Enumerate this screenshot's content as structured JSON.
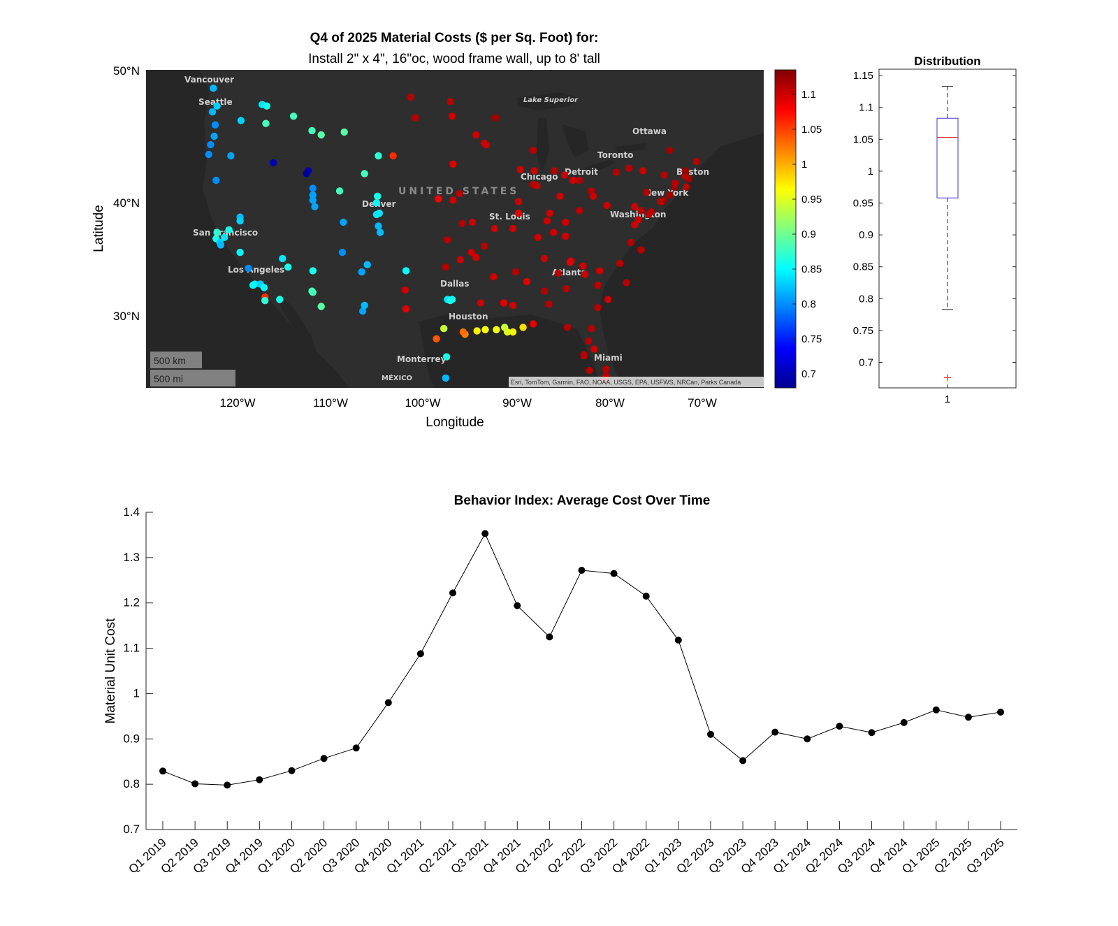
{
  "map_panel": {
    "title": "Q4 of 2025 Material Costs ($ per Sq. Foot) for:",
    "subtitle": "Install 2\" x 4\", 16\"oc, wood frame wall, up to 8' tall",
    "ylabel": "Latitude",
    "xlabel": "Longitude",
    "lat_ticks": [
      "50°N",
      "40°N",
      "30°N"
    ],
    "lon_ticks": [
      "120°W",
      "110°W",
      "100°W",
      "90°W",
      "80°W",
      "70°W"
    ],
    "scale_km": "500 km",
    "scale_mi": "500 mi",
    "attribution": "Esri, TomTom, Garmin, FAO, NOAA, USGS, EPA, USFWS, NRCan, Parks Canada",
    "place_labels": [
      "Vancouver",
      "Seattle",
      "Lake Superior",
      "Ottawa",
      "Toronto",
      "Chicago",
      "Detroit",
      "Boston",
      "New York",
      "Denver",
      "San Francisco",
      "Los Angeles",
      "Washington",
      "St. Louis",
      "Atlanta",
      "Dallas",
      "Houston",
      "Monterrey",
      "Miami",
      "MÉXICO"
    ],
    "country_label": "UNITED STATES"
  },
  "colorbar": {
    "ticks": [
      "1.1",
      "1.05",
      "1",
      "0.95",
      "0.9",
      "0.85",
      "0.8",
      "0.75",
      "0.7"
    ],
    "tick_values": [
      1.1,
      1.05,
      1.0,
      0.95,
      0.9,
      0.85,
      0.8,
      0.75,
      0.7
    ],
    "range": [
      0.68,
      1.135
    ]
  },
  "chart_data": [
    {
      "type": "scatter",
      "title": "Q4 of 2025 Material Costs ($ per Sq. Foot) for:",
      "subtitle": "Install 2\" x 4\", 16\"oc, wood frame wall, up to 8' tall",
      "xlabel": "Longitude",
      "ylabel": "Latitude",
      "xlim": [
        -130,
        -63
      ],
      "ylim": [
        25,
        50
      ],
      "color_range": [
        0.68,
        1.135
      ],
      "points": [
        [
          -122.7,
          48.8,
          0.82
        ],
        [
          -122.3,
          47.6,
          0.83
        ],
        [
          -122.8,
          47.2,
          0.82
        ],
        [
          -122.5,
          46.3,
          0.8
        ],
        [
          -122.6,
          45.5,
          0.81
        ],
        [
          -123.0,
          44.9,
          0.8
        ],
        [
          -123.2,
          44.2,
          0.8
        ],
        [
          -120.8,
          44.1,
          0.81
        ],
        [
          -122.4,
          42.3,
          0.8
        ],
        [
          -117.4,
          47.7,
          0.84
        ],
        [
          -116.9,
          47.6,
          0.86
        ],
        [
          -117.0,
          46.4,
          0.88
        ],
        [
          -114.0,
          46.9,
          0.88
        ],
        [
          -112.0,
          45.9,
          0.88
        ],
        [
          -111.0,
          45.6,
          0.89
        ],
        [
          -108.5,
          45.8,
          0.89
        ],
        [
          -119.7,
          46.6,
          0.83
        ],
        [
          -116.2,
          43.6,
          0.7
        ],
        [
          -112.4,
          43.0,
          0.7
        ],
        [
          -112.6,
          42.8,
          0.69
        ],
        [
          -111.9,
          41.7,
          0.8
        ],
        [
          -111.9,
          41.2,
          0.81
        ],
        [
          -111.9,
          40.8,
          0.81
        ],
        [
          -111.7,
          40.3,
          0.81
        ],
        [
          -109.0,
          41.5,
          0.88
        ],
        [
          -106.3,
          42.8,
          0.88
        ],
        [
          -104.8,
          44.1,
          0.87
        ],
        [
          -104.9,
          41.1,
          0.86
        ],
        [
          -105.0,
          40.6,
          0.85
        ],
        [
          -105.0,
          39.7,
          0.84
        ],
        [
          -104.7,
          39.8,
          0.84
        ],
        [
          -104.8,
          38.8,
          0.82
        ],
        [
          -104.6,
          38.3,
          0.82
        ],
        [
          -108.6,
          39.1,
          0.81
        ],
        [
          -119.8,
          39.5,
          0.82
        ],
        [
          -119.8,
          39.2,
          0.83
        ],
        [
          -122.4,
          37.8,
          0.86
        ],
        [
          -122.0,
          37.5,
          0.83
        ],
        [
          -121.9,
          37.3,
          0.82
        ],
        [
          -121.5,
          37.9,
          0.84
        ],
        [
          -119.8,
          36.7,
          0.85
        ],
        [
          -118.9,
          35.4,
          0.8
        ],
        [
          -121.0,
          38.5,
          0.86
        ],
        [
          -122.3,
          38.3,
          0.87
        ],
        [
          -118.2,
          34.1,
          0.84
        ],
        [
          -118.4,
          34.0,
          0.85
        ],
        [
          -117.6,
          34.1,
          0.83
        ],
        [
          -117.2,
          33.8,
          0.85
        ],
        [
          -117.1,
          33.0,
          1.06
        ],
        [
          -117.1,
          32.7,
          0.87
        ],
        [
          -115.5,
          32.8,
          0.86
        ],
        [
          -112.0,
          33.5,
          0.88
        ],
        [
          -111.9,
          33.4,
          0.88
        ],
        [
          -111.0,
          32.2,
          0.89
        ],
        [
          -111.9,
          35.2,
          0.86
        ],
        [
          -114.6,
          35.5,
          0.86
        ],
        [
          -115.2,
          36.2,
          0.84
        ],
        [
          -106.6,
          35.1,
          0.81
        ],
        [
          -106.0,
          35.7,
          0.82
        ],
        [
          -108.7,
          36.7,
          0.8
        ],
        [
          -106.5,
          31.8,
          0.81
        ],
        [
          -106.3,
          32.3,
          0.82
        ],
        [
          -101.8,
          35.2,
          0.85
        ],
        [
          -97.3,
          32.8,
          0.84
        ],
        [
          -96.8,
          32.8,
          0.85
        ],
        [
          -97.0,
          32.7,
          0.86
        ],
        [
          -98.5,
          29.4,
          1.04
        ],
        [
          -97.7,
          30.3,
          0.94
        ],
        [
          -95.4,
          29.8,
          1.02
        ],
        [
          -95.6,
          30.0,
          1.03
        ],
        [
          -94.1,
          30.1,
          0.97
        ],
        [
          -93.2,
          30.2,
          0.96
        ],
        [
          -92.0,
          30.2,
          0.96
        ],
        [
          -91.1,
          30.4,
          0.94
        ],
        [
          -90.2,
          30.0,
          0.97
        ],
        [
          -89.1,
          30.4,
          0.98
        ],
        [
          -88.0,
          30.7,
          1.09
        ],
        [
          -90.8,
          30.0,
          0.95
        ],
        [
          -97.4,
          27.8,
          0.86
        ],
        [
          -97.5,
          25.9,
          0.82
        ],
        [
          -101.9,
          33.6,
          1.1
        ],
        [
          -101.8,
          32.0,
          1.09
        ],
        [
          -97.5,
          35.5,
          1.11
        ],
        [
          -95.9,
          36.1,
          1.1
        ],
        [
          -97.3,
          37.7,
          1.11
        ],
        [
          -95.7,
          39.0,
          1.11
        ],
        [
          -94.6,
          39.1,
          1.1
        ],
        [
          -96.7,
          40.8,
          1.1
        ],
        [
          -96.0,
          41.3,
          1.11
        ],
        [
          -98.3,
          40.9,
          1.08
        ],
        [
          -100.8,
          46.8,
          1.11
        ],
        [
          -96.8,
          46.9,
          1.1
        ],
        [
          -96.7,
          43.5,
          1.09
        ],
        [
          -103.2,
          44.1,
          1.06
        ],
        [
          -93.3,
          45.0,
          1.1
        ],
        [
          -93.1,
          44.9,
          1.1
        ],
        [
          -92.1,
          46.8,
          1.12
        ],
        [
          -101.3,
          48.2,
          1.11
        ],
        [
          -97.0,
          47.9,
          1.11
        ],
        [
          -94.2,
          45.6,
          1.1
        ],
        [
          -92.3,
          34.7,
          1.1
        ],
        [
          -94.2,
          36.3,
          1.1
        ],
        [
          -93.3,
          37.2,
          1.11
        ],
        [
          -92.2,
          38.6,
          1.1
        ],
        [
          -90.2,
          38.6,
          1.1
        ],
        [
          -89.9,
          35.1,
          1.11
        ],
        [
          -86.8,
          36.2,
          1.1
        ],
        [
          -85.3,
          35.0,
          1.11
        ],
        [
          -83.9,
          36.0,
          1.1
        ],
        [
          -84.4,
          33.7,
          1.11
        ],
        [
          -86.8,
          33.5,
          1.11
        ],
        [
          -86.3,
          32.4,
          1.11
        ],
        [
          -90.2,
          32.3,
          1.1
        ],
        [
          -88.7,
          34.3,
          1.09
        ],
        [
          -84.5,
          38.0,
          1.1
        ],
        [
          -85.8,
          38.3,
          1.1
        ],
        [
          -87.6,
          41.9,
          1.1
        ],
        [
          -88.0,
          42.0,
          1.11
        ],
        [
          -87.9,
          43.0,
          1.1
        ],
        [
          -89.4,
          43.1,
          1.1
        ],
        [
          -88.0,
          44.5,
          1.11
        ],
        [
          -89.6,
          39.8,
          1.09
        ],
        [
          -89.6,
          40.7,
          1.1
        ],
        [
          -86.2,
          39.8,
          1.1
        ],
        [
          -85.1,
          41.1,
          1.1
        ],
        [
          -83.0,
          42.3,
          1.11
        ],
        [
          -83.7,
          42.3,
          1.1
        ],
        [
          -85.7,
          43.0,
          1.11
        ],
        [
          -84.6,
          42.7,
          1.1
        ],
        [
          -84.5,
          39.1,
          1.1
        ],
        [
          -83.0,
          40.0,
          1.11
        ],
        [
          -81.7,
          41.5,
          1.11
        ],
        [
          -81.5,
          41.1,
          1.1
        ],
        [
          -80.0,
          40.4,
          1.1
        ],
        [
          -79.0,
          42.9,
          1.11
        ],
        [
          -77.6,
          43.2,
          1.11
        ],
        [
          -76.1,
          43.0,
          1.1
        ],
        [
          -73.8,
          42.7,
          1.11
        ],
        [
          -82.5,
          27.9,
          1.1
        ],
        [
          -82.5,
          28.0,
          1.11
        ],
        [
          -81.4,
          28.5,
          1.1
        ],
        [
          -81.7,
          30.3,
          1.11
        ],
        [
          -84.3,
          30.4,
          1.11
        ],
        [
          -80.2,
          25.8,
          1.12
        ],
        [
          -80.1,
          26.1,
          1.11
        ],
        [
          -80.1,
          26.7,
          1.11
        ],
        [
          -81.9,
          26.6,
          1.11
        ],
        [
          -82.0,
          29.2,
          1.11
        ],
        [
          -80.8,
          35.2,
          1.1
        ],
        [
          -78.6,
          35.8,
          1.11
        ],
        [
          -77.9,
          34.2,
          1.11
        ],
        [
          -79.9,
          32.8,
          1.1
        ],
        [
          -81.0,
          32.1,
          1.11
        ],
        [
          -81.0,
          34.0,
          1.11
        ],
        [
          -77.4,
          37.5,
          1.11
        ],
        [
          -76.3,
          36.9,
          1.11
        ],
        [
          -77.0,
          38.9,
          1.1
        ],
        [
          -76.6,
          39.3,
          1.1
        ],
        [
          -75.2,
          39.9,
          1.11
        ],
        [
          -75.5,
          39.7,
          1.11
        ],
        [
          -74.0,
          40.7,
          1.12
        ],
        [
          -73.9,
          40.8,
          1.12
        ],
        [
          -74.2,
          40.7,
          1.11
        ],
        [
          -73.2,
          41.2,
          1.12
        ],
        [
          -72.7,
          41.8,
          1.12
        ],
        [
          -71.4,
          41.8,
          1.11
        ],
        [
          -71.1,
          42.4,
          1.12
        ],
        [
          -71.5,
          42.6,
          1.11
        ],
        [
          -72.6,
          42.1,
          1.11
        ],
        [
          -70.3,
          43.7,
          1.11
        ],
        [
          -71.5,
          43.0,
          1.12
        ],
        [
          -73.2,
          44.5,
          1.12
        ],
        [
          -77.0,
          40.3,
          1.1
        ],
        [
          -76.3,
          40.0,
          1.11
        ],
        [
          -75.7,
          41.4,
          1.11
        ],
        [
          -84.0,
          35.9,
          1.09
        ],
        [
          -82.6,
          35.6,
          1.1
        ],
        [
          -82.4,
          34.9,
          1.1
        ],
        [
          -93.7,
          32.5,
          1.1
        ],
        [
          -91.2,
          32.5,
          1.09
        ],
        [
          -94.7,
          36.7,
          1.1
        ],
        [
          -87.5,
          37.9,
          1.1
        ],
        [
          -86.5,
          39.2,
          1.1
        ]
      ]
    },
    {
      "type": "box",
      "title": "Distribution",
      "category": "1",
      "ylim": [
        0.66,
        1.16
      ],
      "yticks": [
        0.7,
        0.75,
        0.8,
        0.85,
        0.9,
        0.95,
        1,
        1.05,
        1.1,
        1.15
      ],
      "whisker_low": 0.783,
      "q1": 0.958,
      "median": 1.053,
      "q3": 1.083,
      "whisker_high": 1.133,
      "outliers": [
        0.676
      ]
    },
    {
      "type": "line",
      "title": "Behavior Index: Average Cost Over Time",
      "xlabel": "",
      "ylabel": "Material Unit Cost",
      "ylim": [
        0.7,
        1.4
      ],
      "yticks": [
        0.7,
        0.8,
        0.9,
        1,
        1.1,
        1.2,
        1.3,
        1.4
      ],
      "categories": [
        "Q1 2019",
        "Q2 2019",
        "Q3 2019",
        "Q4 2019",
        "Q1 2020",
        "Q2 2020",
        "Q3 2020",
        "Q4 2020",
        "Q1 2021",
        "Q2 2021",
        "Q3 2021",
        "Q4 2021",
        "Q1 2022",
        "Q2 2022",
        "Q3 2022",
        "Q4 2022",
        "Q1 2023",
        "Q2 2023",
        "Q3 2023",
        "Q4 2023",
        "Q1 2024",
        "Q2 2024",
        "Q3 2024",
        "Q4 2024",
        "Q1 2025",
        "Q2 2025",
        "Q3 2025"
      ],
      "values": [
        0.829,
        0.801,
        0.798,
        0.81,
        0.83,
        0.857,
        0.88,
        0.98,
        1.088,
        1.222,
        1.353,
        1.194,
        1.125,
        1.272,
        1.265,
        1.215,
        1.118,
        0.91,
        0.852,
        0.915,
        0.9,
        0.928,
        0.914,
        0.936,
        0.964,
        0.948,
        0.959
      ]
    }
  ]
}
